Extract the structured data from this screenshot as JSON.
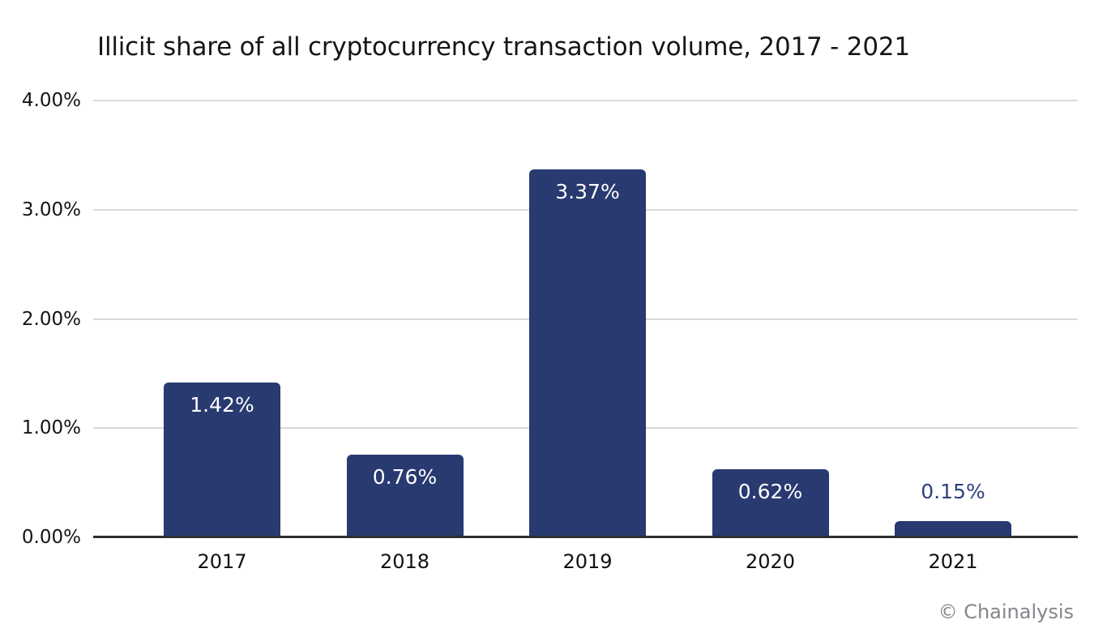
{
  "chart_data": {
    "type": "bar",
    "title": "Illicit share of all cryptocurrency transaction volume, 2017 - 2021",
    "categories": [
      "2017",
      "2018",
      "2019",
      "2020",
      "2021"
    ],
    "values": [
      1.42,
      0.76,
      3.37,
      0.62,
      0.15
    ],
    "value_labels": [
      "1.42%",
      "0.76%",
      "3.37%",
      "0.62%",
      "0.15%"
    ],
    "value_label_positions": [
      "inside",
      "inside",
      "inside",
      "inside",
      "above"
    ],
    "xlabel": "",
    "ylabel": "",
    "ylim": [
      0,
      4
    ],
    "y_ticks": [
      "4.00%",
      "3.00%",
      "2.00%",
      "1.00%",
      "0.00%"
    ],
    "grid": true,
    "legend": false,
    "colors": {
      "bar": "#283a70",
      "value_label_inside": "#ffffff",
      "value_label_above": "#2e4181",
      "gridline": "#d9d9d9",
      "axis_line": "#2f2f2f",
      "title_text": "#161616",
      "tick_text": "#141414",
      "watermark_text": "#85868c"
    }
  },
  "watermark": {
    "label": "© Chainalysis"
  }
}
